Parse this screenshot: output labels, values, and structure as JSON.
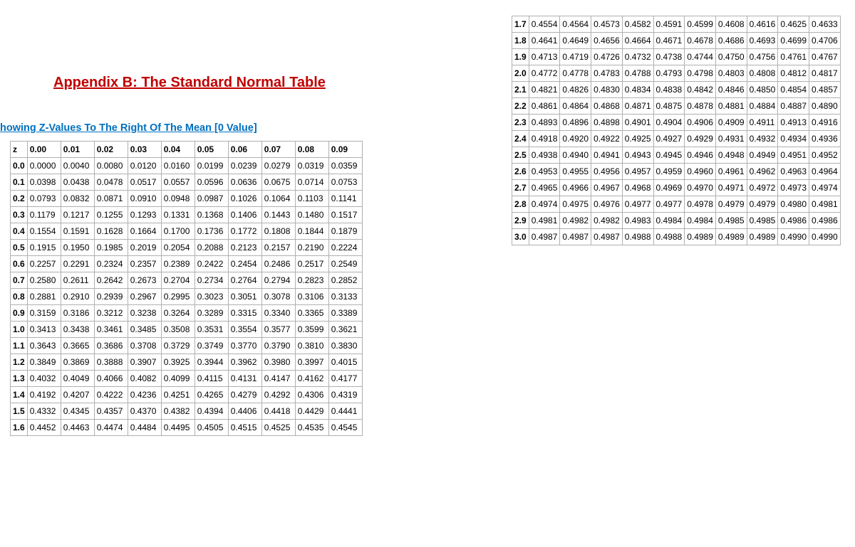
{
  "title": "Appendix B: The Standard Normal Table",
  "subtitle": "howing Z-Values To The Right Of The Mean [0 Value]",
  "colors": {
    "title": "#c00000",
    "subtitle": "#0070c0",
    "border": "#b0b0b0",
    "background": "#ffffff"
  },
  "table_left": {
    "columns": [
      "z",
      "0.00",
      "0.01",
      "0.02",
      "0.03",
      "0.04",
      "0.05",
      "0.06",
      "0.07",
      "0.08",
      "0.09"
    ],
    "rows": [
      [
        "0.0",
        "0.0000",
        "0.0040",
        "0.0080",
        "0.0120",
        "0.0160",
        "0.0199",
        "0.0239",
        "0.0279",
        "0.0319",
        "0.0359"
      ],
      [
        "0.1",
        "0.0398",
        "0.0438",
        "0.0478",
        "0.0517",
        "0.0557",
        "0.0596",
        "0.0636",
        "0.0675",
        "0.0714",
        "0.0753"
      ],
      [
        "0.2",
        "0.0793",
        "0.0832",
        "0.0871",
        "0.0910",
        "0.0948",
        "0.0987",
        "0.1026",
        "0.1064",
        "0.1103",
        "0.1141"
      ],
      [
        "0.3",
        "0.1179",
        "0.1217",
        "0.1255",
        "0.1293",
        "0.1331",
        "0.1368",
        "0.1406",
        "0.1443",
        "0.1480",
        "0.1517"
      ],
      [
        "0.4",
        "0.1554",
        "0.1591",
        "0.1628",
        "0.1664",
        "0.1700",
        "0.1736",
        "0.1772",
        "0.1808",
        "0.1844",
        "0.1879"
      ],
      [
        "0.5",
        "0.1915",
        "0.1950",
        "0.1985",
        "0.2019",
        "0.2054",
        "0.2088",
        "0.2123",
        "0.2157",
        "0.2190",
        "0.2224"
      ],
      [
        "0.6",
        "0.2257",
        "0.2291",
        "0.2324",
        "0.2357",
        "0.2389",
        "0.2422",
        "0.2454",
        "0.2486",
        "0.2517",
        "0.2549"
      ],
      [
        "0.7",
        "0.2580",
        "0.2611",
        "0.2642",
        "0.2673",
        "0.2704",
        "0.2734",
        "0.2764",
        "0.2794",
        "0.2823",
        "0.2852"
      ],
      [
        "0.8",
        "0.2881",
        "0.2910",
        "0.2939",
        "0.2967",
        "0.2995",
        "0.3023",
        "0.3051",
        "0.3078",
        "0.3106",
        "0.3133"
      ],
      [
        "0.9",
        "0.3159",
        "0.3186",
        "0.3212",
        "0.3238",
        "0.3264",
        "0.3289",
        "0.3315",
        "0.3340",
        "0.3365",
        "0.3389"
      ],
      [
        "1.0",
        "0.3413",
        "0.3438",
        "0.3461",
        "0.3485",
        "0.3508",
        "0.3531",
        "0.3554",
        "0.3577",
        "0.3599",
        "0.3621"
      ],
      [
        "1.1",
        "0.3643",
        "0.3665",
        "0.3686",
        "0.3708",
        "0.3729",
        "0.3749",
        "0.3770",
        "0.3790",
        "0.3810",
        "0.3830"
      ],
      [
        "1.2",
        "0.3849",
        "0.3869",
        "0.3888",
        "0.3907",
        "0.3925",
        "0.3944",
        "0.3962",
        "0.3980",
        "0.3997",
        "0.4015"
      ],
      [
        "1.3",
        "0.4032",
        "0.4049",
        "0.4066",
        "0.4082",
        "0.4099",
        "0.4115",
        "0.4131",
        "0.4147",
        "0.4162",
        "0.4177"
      ],
      [
        "1.4",
        "0.4192",
        "0.4207",
        "0.4222",
        "0.4236",
        "0.4251",
        "0.4265",
        "0.4279",
        "0.4292",
        "0.4306",
        "0.4319"
      ],
      [
        "1.5",
        "0.4332",
        "0.4345",
        "0.4357",
        "0.4370",
        "0.4382",
        "0.4394",
        "0.4406",
        "0.4418",
        "0.4429",
        "0.4441"
      ],
      [
        "1.6",
        "0.4452",
        "0.4463",
        "0.4474",
        "0.4484",
        "0.4495",
        "0.4505",
        "0.4515",
        "0.4525",
        "0.4535",
        "0.4545"
      ]
    ]
  },
  "table_right": {
    "rows": [
      [
        "1.7",
        "0.4554",
        "0.4564",
        "0.4573",
        "0.4582",
        "0.4591",
        "0.4599",
        "0.4608",
        "0.4616",
        "0.4625",
        "0.4633"
      ],
      [
        "1.8",
        "0.4641",
        "0.4649",
        "0.4656",
        "0.4664",
        "0.4671",
        "0.4678",
        "0.4686",
        "0.4693",
        "0.4699",
        "0.4706"
      ],
      [
        "1.9",
        "0.4713",
        "0.4719",
        "0.4726",
        "0.4732",
        "0.4738",
        "0.4744",
        "0.4750",
        "0.4756",
        "0.4761",
        "0.4767"
      ],
      [
        "2.0",
        "0.4772",
        "0.4778",
        "0.4783",
        "0.4788",
        "0.4793",
        "0.4798",
        "0.4803",
        "0.4808",
        "0.4812",
        "0.4817"
      ],
      [
        "2.1",
        "0.4821",
        "0.4826",
        "0.4830",
        "0.4834",
        "0.4838",
        "0.4842",
        "0.4846",
        "0.4850",
        "0.4854",
        "0.4857"
      ],
      [
        "2.2",
        "0.4861",
        "0.4864",
        "0.4868",
        "0.4871",
        "0.4875",
        "0.4878",
        "0.4881",
        "0.4884",
        "0.4887",
        "0.4890"
      ],
      [
        "2.3",
        "0.4893",
        "0.4896",
        "0.4898",
        "0.4901",
        "0.4904",
        "0.4906",
        "0.4909",
        "0.4911",
        "0.4913",
        "0.4916"
      ],
      [
        "2.4",
        "0.4918",
        "0.4920",
        "0.4922",
        "0.4925",
        "0.4927",
        "0.4929",
        "0.4931",
        "0.4932",
        "0.4934",
        "0.4936"
      ],
      [
        "2.5",
        "0.4938",
        "0.4940",
        "0.4941",
        "0.4943",
        "0.4945",
        "0.4946",
        "0.4948",
        "0.4949",
        "0.4951",
        "0.4952"
      ],
      [
        "2.6",
        "0.4953",
        "0.4955",
        "0.4956",
        "0.4957",
        "0.4959",
        "0.4960",
        "0.4961",
        "0.4962",
        "0.4963",
        "0.4964"
      ],
      [
        "2.7",
        "0.4965",
        "0.4966",
        "0.4967",
        "0.4968",
        "0.4969",
        "0.4970",
        "0.4971",
        "0.4972",
        "0.4973",
        "0.4974"
      ],
      [
        "2.8",
        "0.4974",
        "0.4975",
        "0.4976",
        "0.4977",
        "0.4977",
        "0.4978",
        "0.4979",
        "0.4979",
        "0.4980",
        "0.4981"
      ],
      [
        "2.9",
        "0.4981",
        "0.4982",
        "0.4982",
        "0.4983",
        "0.4984",
        "0.4984",
        "0.4985",
        "0.4985",
        "0.4986",
        "0.4986"
      ],
      [
        "3.0",
        "0.4987",
        "0.4987",
        "0.4987",
        "0.4988",
        "0.4988",
        "0.4989",
        "0.4989",
        "0.4989",
        "0.4990",
        "0.4990"
      ]
    ]
  }
}
